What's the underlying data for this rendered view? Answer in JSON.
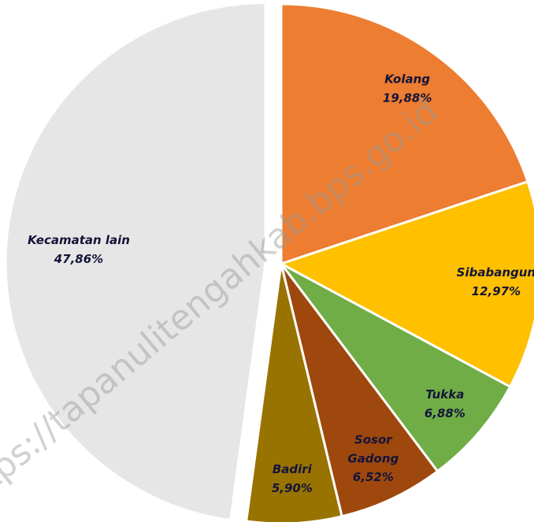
{
  "chart_data": {
    "type": "pie",
    "categories": [
      "Kolang",
      "Sibabangun",
      "Tukka",
      "Sosor Gadong",
      "Badiri",
      "Kecamatan lain"
    ],
    "values": [
      19.88,
      12.97,
      6.88,
      6.52,
      5.9,
      47.86
    ],
    "value_labels": [
      "19,88%",
      "12,97%",
      "6,88%",
      "6,52%",
      "5,90%",
      "47,86%"
    ],
    "colors": [
      "#ED7D31",
      "#FFC000",
      "#70AD47",
      "#9E480E",
      "#997300",
      "#E6E6E6"
    ],
    "exploded": "Kecamatan lain",
    "watermark": "https://tapanulitengahkab.bps.go.id"
  }
}
